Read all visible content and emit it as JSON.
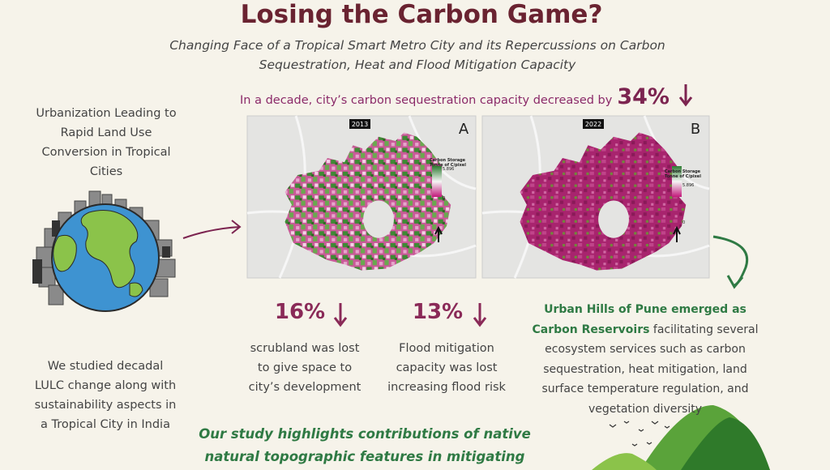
{
  "header": {
    "title": "Losing the Carbon Game?",
    "subtitle": "Changing Face of a Tropical Smart Metro City and its Repercussions on Carbon Sequestration, Heat and Flood Mitigation Capacity"
  },
  "headline": {
    "text": "In a decade, city’s carbon sequestration capacity decreased by",
    "figure": "34%"
  },
  "left": {
    "top": "Urbanization Leading to Rapid Land Use Conversion in Tropical Cities",
    "bottom": "We studied decadal LULC change along with sustainability aspects in a Tropical City in India"
  },
  "maps": [
    {
      "year": "2013",
      "panel": "A",
      "legend_title": "Carbon Storage",
      "legend_unit": "Tonne of C/pixel",
      "legend_max": "5.896",
      "legend_min": "0"
    },
    {
      "year": "2022",
      "panel": "B",
      "legend_title": "Carbon Storage",
      "legend_unit": "Tonne of C/pixel",
      "legend_max": "5.896",
      "legend_min": "0"
    }
  ],
  "stats": [
    {
      "figure": "16%",
      "text": "scrubland was lost to give space to city’s development"
    },
    {
      "figure": "13%",
      "text": "Flood mitigation capacity was lost increasing flood risk"
    }
  ],
  "right": {
    "highlight": "Urban Hills of Pune emerged as Carbon Reservoirs",
    "text": "facilitating several ecosystem services such as carbon sequestration, heat mitigation, land surface temperature regulation, and vegetation diversity"
  },
  "footer": {
    "text": "Our study highlights contributions of native natural topographic features in mitigating"
  }
}
